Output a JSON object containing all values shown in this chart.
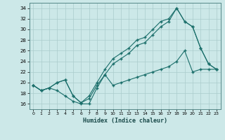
{
  "xlabel": "Humidex (Indice chaleur)",
  "xlim": [
    -0.5,
    23.5
  ],
  "ylim": [
    15,
    35
  ],
  "yticks": [
    16,
    18,
    20,
    22,
    24,
    26,
    28,
    30,
    32,
    34
  ],
  "xticks": [
    0,
    1,
    2,
    3,
    4,
    5,
    6,
    7,
    8,
    9,
    10,
    11,
    12,
    13,
    14,
    15,
    16,
    17,
    18,
    19,
    20,
    21,
    22,
    23
  ],
  "bg_color": "#cce8e8",
  "grid_color": "#aacccc",
  "line_color": "#1a6e6a",
  "line1_x": [
    0,
    1,
    2,
    3,
    4,
    5,
    6,
    7,
    8,
    9,
    10,
    11,
    12,
    13,
    14,
    15,
    16,
    17,
    18,
    19,
    20,
    21,
    22,
    23
  ],
  "line1_y": [
    19.5,
    18.5,
    19.0,
    18.5,
    17.5,
    16.5,
    16.0,
    16.0,
    19.0,
    21.5,
    19.5,
    20.0,
    20.5,
    21.0,
    21.5,
    22.0,
    22.5,
    23.0,
    24.0,
    26.0,
    22.0,
    22.5,
    22.5,
    22.5
  ],
  "line2_x": [
    0,
    1,
    2,
    3,
    4,
    5,
    6,
    7,
    8,
    9,
    10,
    11,
    12,
    13,
    14,
    15,
    16,
    17,
    18,
    19,
    20,
    21,
    22,
    23
  ],
  "line2_y": [
    19.5,
    18.5,
    19.0,
    20.0,
    20.5,
    17.5,
    16.2,
    17.0,
    19.5,
    21.5,
    23.5,
    24.5,
    25.5,
    27.0,
    27.5,
    29.0,
    30.5,
    31.5,
    34.0,
    31.5,
    30.5,
    26.5,
    23.5,
    22.5
  ],
  "line3_x": [
    0,
    1,
    2,
    3,
    4,
    5,
    6,
    7,
    8,
    9,
    10,
    11,
    12,
    13,
    14,
    15,
    16,
    17,
    18,
    19,
    20,
    21,
    22,
    23
  ],
  "line3_y": [
    19.5,
    18.5,
    19.0,
    20.0,
    20.5,
    17.5,
    16.2,
    17.5,
    20.0,
    22.5,
    24.5,
    25.5,
    26.5,
    28.0,
    28.5,
    30.0,
    31.5,
    32.0,
    34.0,
    31.5,
    30.5,
    26.5,
    23.5,
    22.5
  ]
}
